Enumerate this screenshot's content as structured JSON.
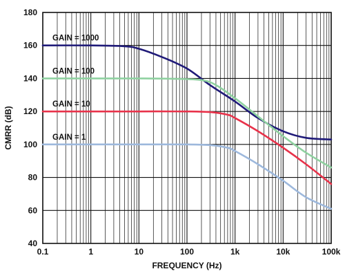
{
  "chart_data": {
    "type": "line",
    "xlabel": "FREQUENCY (Hz)",
    "ylabel": "CMRR (dB)",
    "xscale": "log",
    "xlim": [
      0.1,
      100000
    ],
    "ylim": [
      40,
      180
    ],
    "grid": true,
    "x_ticks": [
      {
        "value": 0.1,
        "label": "0.1"
      },
      {
        "value": 1,
        "label": "1"
      },
      {
        "value": 10,
        "label": "10"
      },
      {
        "value": 100,
        "label": "100"
      },
      {
        "value": 1000,
        "label": "1k"
      },
      {
        "value": 10000,
        "label": "10k"
      },
      {
        "value": 100000,
        "label": "100k"
      }
    ],
    "y_ticks": [
      {
        "value": 40,
        "label": "40"
      },
      {
        "value": 60,
        "label": "60"
      },
      {
        "value": 80,
        "label": "80"
      },
      {
        "value": 100,
        "label": "100"
      },
      {
        "value": 120,
        "label": "120"
      },
      {
        "value": 140,
        "label": "140"
      },
      {
        "value": 160,
        "label": "160"
      },
      {
        "value": 180,
        "label": "180"
      }
    ],
    "series": [
      {
        "name": "GAIN = 1000",
        "color": "#1f1a78",
        "points": [
          [
            0.1,
            160
          ],
          [
            1,
            160
          ],
          [
            5,
            159.5
          ],
          [
            10,
            158
          ],
          [
            30,
            153
          ],
          [
            100,
            146
          ],
          [
            300,
            136
          ],
          [
            1000,
            126
          ],
          [
            3000,
            116
          ],
          [
            10000,
            108
          ],
          [
            30000,
            104
          ],
          [
            100000,
            103
          ]
        ]
      },
      {
        "name": "GAIN = 100",
        "color": "#8fd1a0",
        "points": [
          [
            0.1,
            140
          ],
          [
            1,
            140
          ],
          [
            10,
            140
          ],
          [
            50,
            139.8
          ],
          [
            200,
            139
          ],
          [
            400,
            136
          ],
          [
            1000,
            128
          ],
          [
            3000,
            117
          ],
          [
            10000,
            105
          ],
          [
            30000,
            95
          ],
          [
            100000,
            86
          ]
        ]
      },
      {
        "name": "GAIN = 10",
        "color": "#e8324a",
        "points": [
          [
            0.1,
            120
          ],
          [
            1,
            120
          ],
          [
            10,
            120
          ],
          [
            100,
            120
          ],
          [
            300,
            119.6
          ],
          [
            700,
            118
          ],
          [
            1000,
            116
          ],
          [
            3000,
            108
          ],
          [
            10000,
            98
          ],
          [
            30000,
            88
          ],
          [
            100000,
            76
          ]
        ]
      },
      {
        "name": "GAIN = 1",
        "color": "#9db8dc",
        "points": [
          [
            0.1,
            100
          ],
          [
            1,
            100
          ],
          [
            10,
            100
          ],
          [
            100,
            100
          ],
          [
            300,
            99.6
          ],
          [
            700,
            98
          ],
          [
            1000,
            96
          ],
          [
            3000,
            88
          ],
          [
            10000,
            78
          ],
          [
            30000,
            68
          ],
          [
            100000,
            61
          ]
        ]
      }
    ]
  }
}
